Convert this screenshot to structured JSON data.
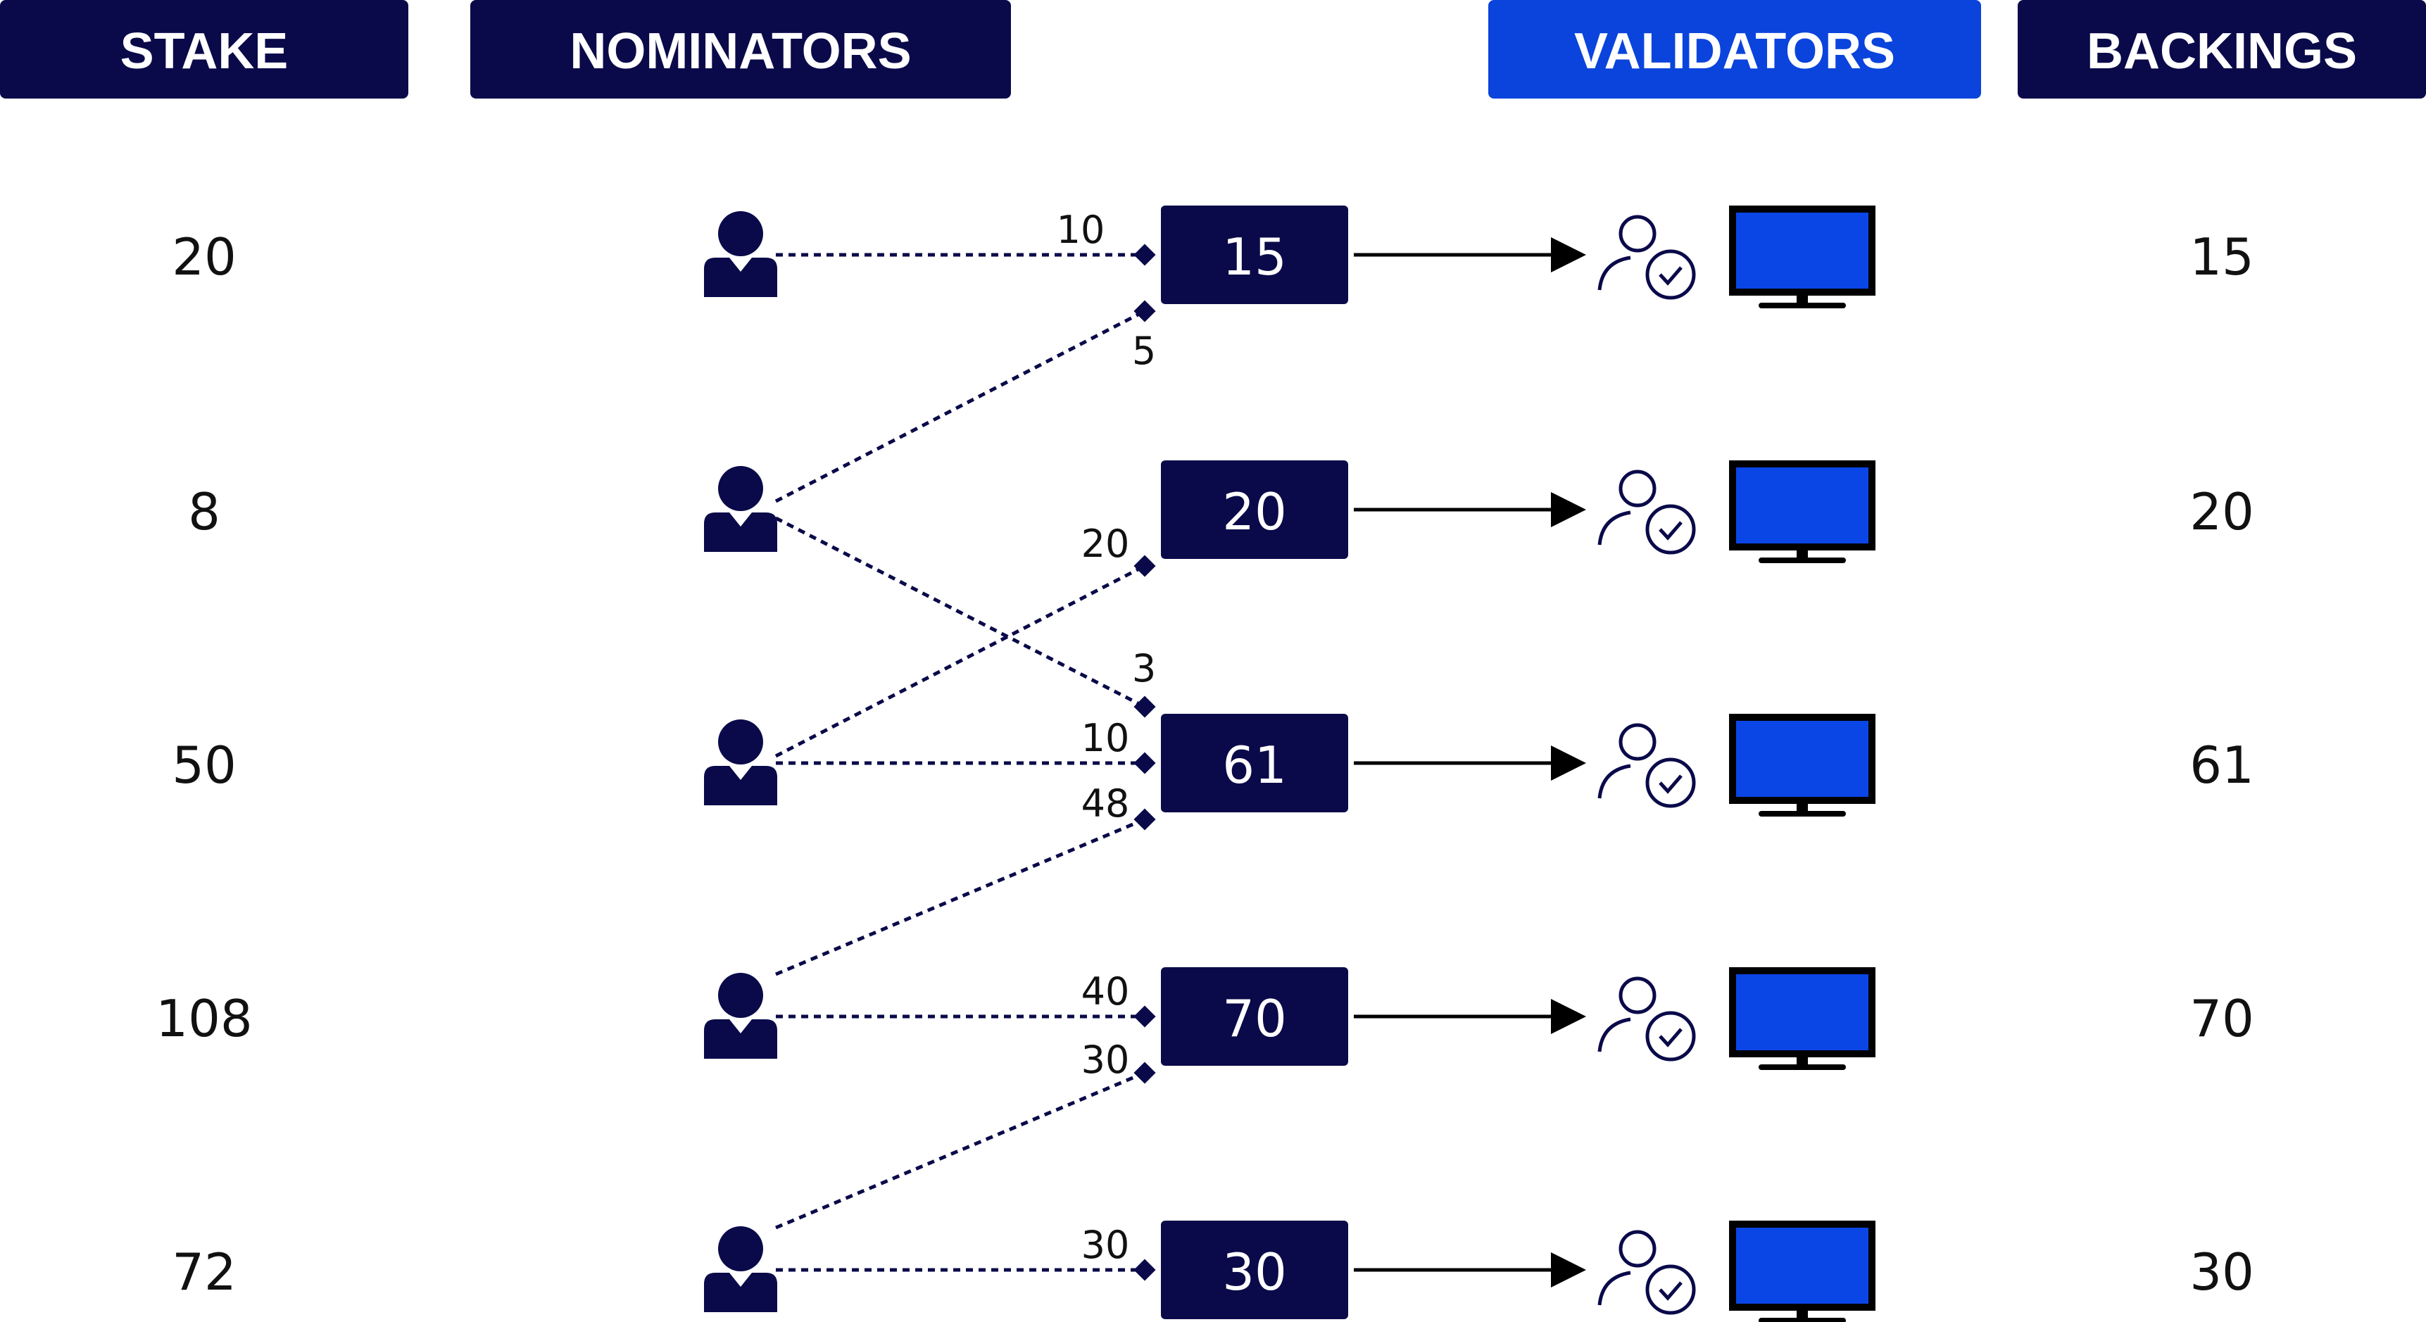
{
  "headers": {
    "stake": "STAKE",
    "nominators": "NOMINATORS",
    "validators": "VALIDATORS",
    "backings": "BACKINGS"
  },
  "colors": {
    "navy": "#0a0a4a",
    "blue": "#0a44dc",
    "screen_blue": "#0a46e6",
    "black": "#000000"
  },
  "stakes": [
    "20",
    "8",
    "50",
    "108",
    "72"
  ],
  "validator_boxes": [
    "15",
    "20",
    "61",
    "70",
    "30"
  ],
  "backings": [
    "15",
    "20",
    "61",
    "70",
    "30"
  ],
  "edges": [
    {
      "from": 0,
      "to": 0,
      "label": "10"
    },
    {
      "from": 1,
      "to": 0,
      "label": "5"
    },
    {
      "from": 1,
      "to": 2,
      "label": "3"
    },
    {
      "from": 2,
      "to": 1,
      "label": "20"
    },
    {
      "from": 2,
      "to": 2,
      "label": "10"
    },
    {
      "from": 3,
      "to": 2,
      "label": "48"
    },
    {
      "from": 3,
      "to": 3,
      "label": "40"
    },
    {
      "from": 4,
      "to": 3,
      "label": "30"
    },
    {
      "from": 4,
      "to": 4,
      "label": "30"
    }
  ],
  "icons": {
    "nominator": "person-icon",
    "validator": "verified-user-icon",
    "node": "monitor-icon"
  }
}
